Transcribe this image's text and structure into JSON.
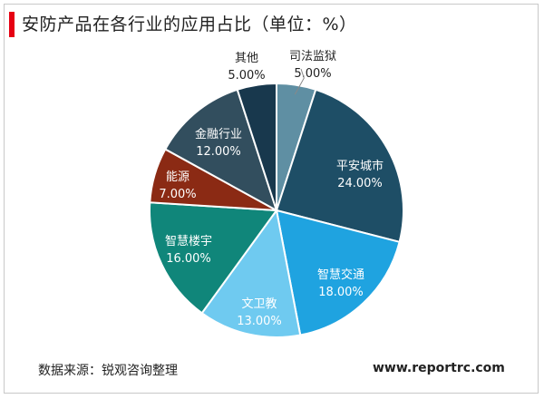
{
  "title": "安防产品在各行业的应用占比（单位：%）",
  "source": "数据来源：锐观咨询整理",
  "website": "www.reportrc.com",
  "chart_data": {
    "type": "pie",
    "title": "安防产品在各行业的应用占比（单位：%）",
    "categories": [
      "司法监狱",
      "平安城市",
      "智慧交通",
      "文卫教",
      "智慧楼宇",
      "能源",
      "金融行业",
      "其他"
    ],
    "values": [
      5.0,
      24.0,
      18.0,
      13.0,
      16.0,
      7.0,
      12.0,
      5.0
    ],
    "value_labels": [
      "5.00%",
      "24.00%",
      "18.00%",
      "13.00%",
      "16.00%",
      "7.00%",
      "12.00%",
      "5.00%"
    ],
    "colors": [
      "#5f8fa3",
      "#1e4e66",
      "#1fa3e0",
      "#6fcaf0",
      "#10867a",
      "#8b2a14",
      "#324e5e",
      "#18384d"
    ],
    "label_colors": [
      "#222222",
      "#ffffff",
      "#ffffff",
      "#ffffff",
      "#ffffff",
      "#ffffff",
      "#ffffff",
      "#222222"
    ],
    "start_angle_deg": 0,
    "direction": "clockwise",
    "legend": "none"
  }
}
